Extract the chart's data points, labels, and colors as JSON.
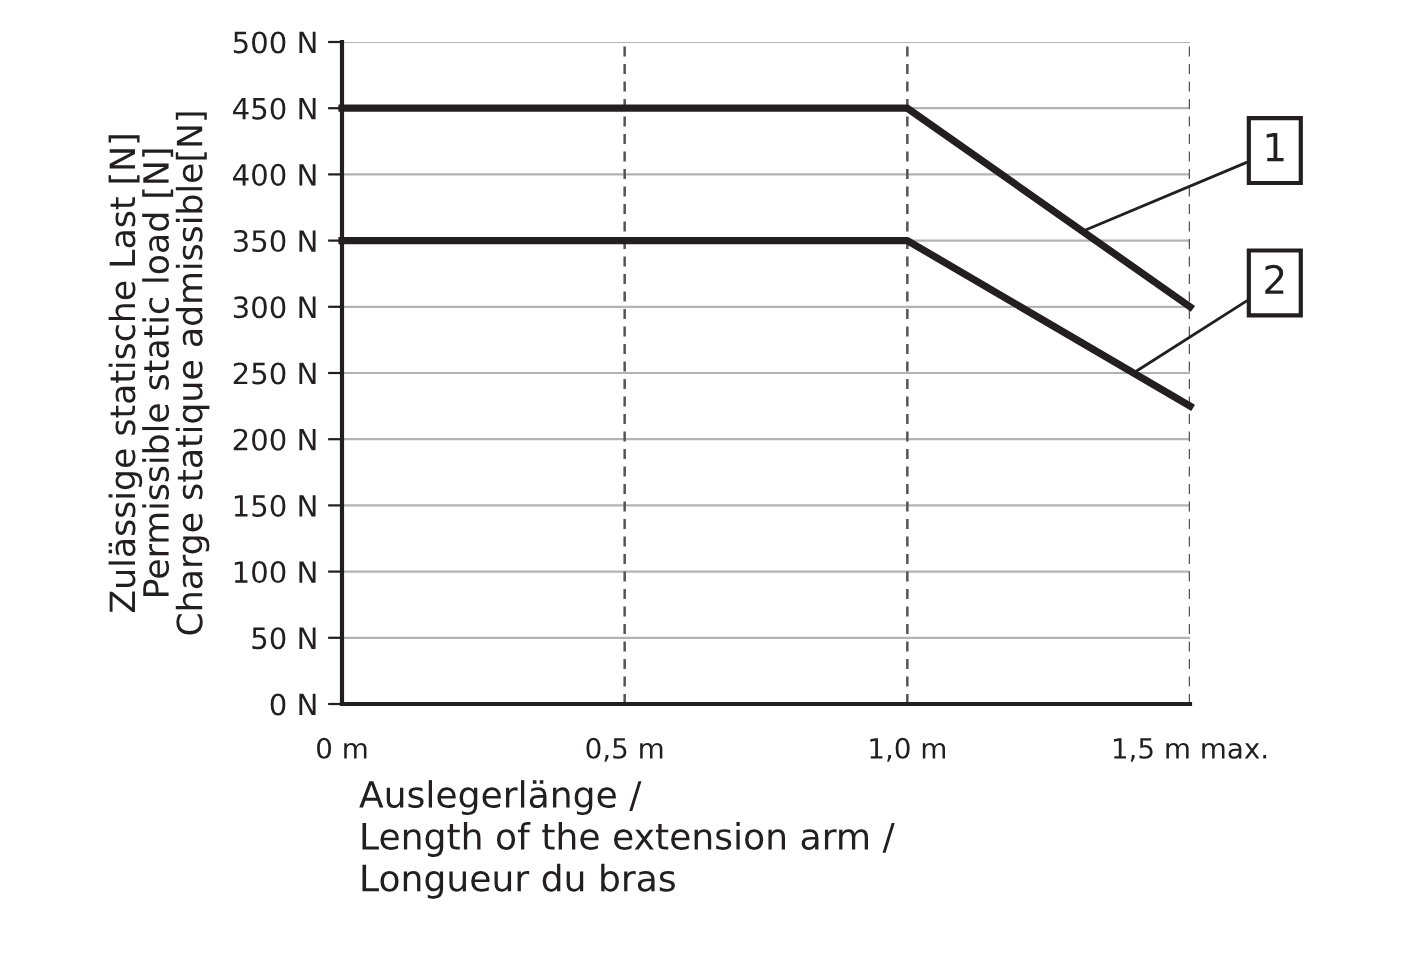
{
  "chart_data": {
    "type": "line",
    "x": [
      0,
      1.0,
      1.5
    ],
    "series": [
      {
        "name": "1",
        "color": "#231f20",
        "values": [
          450,
          450,
          300
        ]
      },
      {
        "name": "2",
        "color": "#231f20",
        "values": [
          350,
          350,
          225
        ]
      }
    ],
    "xlabel": "Auslegerlänge /\nLength of the extension arm /\nLongueur du bras",
    "ylabel": "Zulässige statische Last [N]\nPermissible static load [N]\nCharge statique admissible[N]",
    "xlim": [
      0,
      1.5
    ],
    "xticks": [
      {
        "value": 0,
        "label": "0 m"
      },
      {
        "value": 0.5,
        "label": "0,5 m"
      },
      {
        "value": 1.0,
        "label": "1,0 m"
      },
      {
        "value": 1.5,
        "label": "1,5 m max."
      }
    ],
    "ylim": [
      0,
      500
    ],
    "yticks": [
      {
        "value": 0,
        "label": "0 N"
      },
      {
        "value": 50,
        "label": "50 N"
      },
      {
        "value": 100,
        "label": "100 N"
      },
      {
        "value": 150,
        "label": "150 N"
      },
      {
        "value": 200,
        "label": "200 N"
      },
      {
        "value": 250,
        "label": "250 N"
      },
      {
        "value": 300,
        "label": "300 N"
      },
      {
        "value": 350,
        "label": "350 N"
      },
      {
        "value": 400,
        "label": "400 N"
      },
      {
        "value": 450,
        "label": "450 N"
      },
      {
        "value": 500,
        "label": "500 N"
      }
    ],
    "grid": true,
    "marker": "none",
    "line_style": "solid"
  }
}
